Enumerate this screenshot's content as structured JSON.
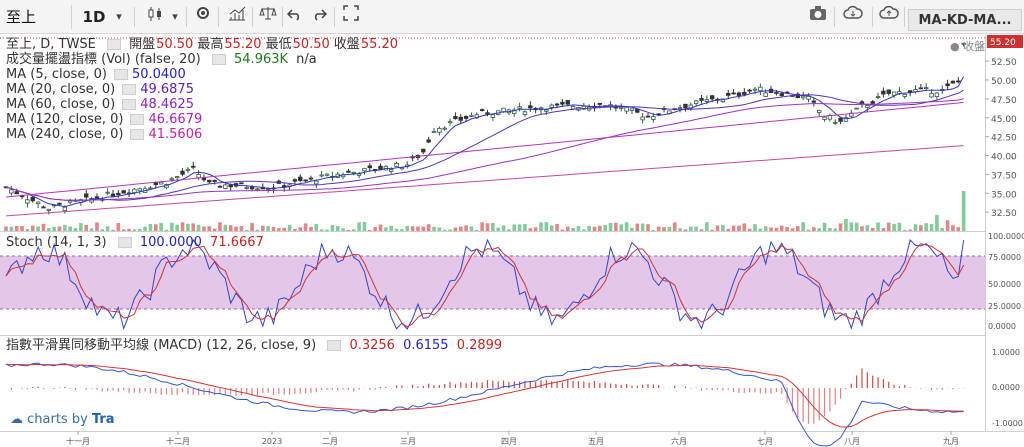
{
  "toolbar": {
    "symbol": "至上",
    "interval": "1D",
    "dropdown": "▾",
    "right_label": "MA-KD-MA..."
  },
  "legend": {
    "title": "至上, D, TWSE",
    "ohlc": [
      {
        "label": "開盤",
        "value": "50.50"
      },
      {
        "label": "最高",
        "value": "55.20"
      },
      {
        "label": "最低",
        "value": "50.50"
      },
      {
        "label": "收盤",
        "value": "55.20"
      }
    ],
    "vol": {
      "label": "成交量擺盪指標 (Vol) (false, 20)",
      "value": "54.963K",
      "extra": "n/a"
    },
    "ma": [
      {
        "label": "MA (5, close, 0)",
        "value": "50.0400",
        "color": "#2222cc"
      },
      {
        "label": "MA (20, close, 0)",
        "value": "49.6875",
        "color": "#5522cc"
      },
      {
        "label": "MA (60, close, 0)",
        "value": "48.4625",
        "color": "#8a22cc"
      },
      {
        "label": "MA (120, close, 0)",
        "value": "46.6679",
        "color": "#aa22bb"
      },
      {
        "label": "MA (240, close, 0)",
        "value": "41.5606",
        "color": "#cc2299"
      }
    ],
    "last_close_tag": "收盤"
  },
  "stoch": {
    "label": "Stoch (14, 1, 3)",
    "k": "100.0000",
    "d": "71.6667",
    "ticks": [
      "100.0000",
      "75.0000",
      "50.0000",
      "25.0000",
      "0.0000"
    ]
  },
  "macd": {
    "label": "指數平滑異同移動平均線 (MACD) (12, 26, close, 9)",
    "hist": "0.3256",
    "macd": "0.6155",
    "signal": "0.2899",
    "ticks": [
      "1.0000",
      "0.0000",
      "-1.0000"
    ]
  },
  "price_axis": {
    "ticks": [
      "52.50",
      "50.00",
      "47.50",
      "45.00",
      "42.50",
      "40.00",
      "37.50",
      "35.00",
      "32.50"
    ],
    "last": "55.20"
  },
  "time_axis": [
    "十一月",
    "十二月",
    "2023",
    "二月",
    "三月",
    "四月",
    "五月",
    "六月",
    "七月",
    "八月",
    "九月"
  ],
  "credit": {
    "prefix": "charts by",
    "brand": "Tra"
  },
  "colors": {
    "up": "#2e8b57",
    "down": "#d03030",
    "stoch_band": "#d9b3e0",
    "macd_line": "#3355dd",
    "signal_line": "#dd3333"
  }
}
